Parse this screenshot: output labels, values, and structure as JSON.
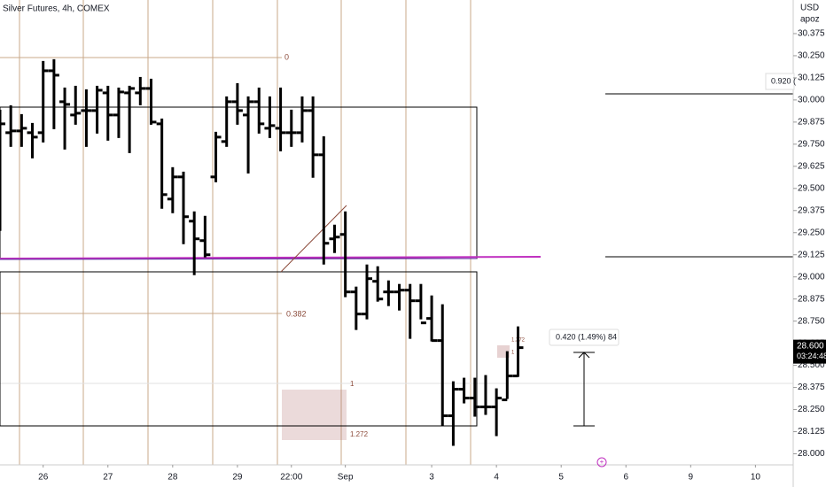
{
  "chart_data": {
    "type": "ohlc",
    "title": "Silver Futures, 4h, COMEX",
    "currency": "USD",
    "axis_note": "apoz",
    "color": "#000000",
    "open": [
      29.815,
      29.815,
      29.825,
      29.815,
      29.815,
      30.165,
      29.99,
      29.915,
      29.94,
      29.94,
      30.04,
      29.915,
      30.04,
      30.04,
      30.065,
      29.865,
      29.44,
      29.565,
      29.315,
      29.205,
      29.565,
      29.765,
      29.99,
      29.915,
      29.99,
      29.84,
      29.84,
      29.815,
      29.815,
      29.94,
      29.69,
      29.215,
      29.24,
      28.915,
      28.79,
      28.975,
      28.915,
      28.915,
      28.925,
      28.865,
      28.765,
      28.64,
      28.215,
      28.365,
      28.315,
      28.265,
      28.265,
      28.305,
      28.44
    ],
    "high": [
      29.94,
      29.965,
      29.915,
      29.865,
      30.215,
      30.225,
      30.065,
      30.075,
      30.055,
      30.075,
      30.075,
      30.065,
      30.075,
      30.125,
      30.115,
      29.89,
      29.615,
      29.59,
      29.365,
      29.34,
      29.815,
      30.015,
      30.09,
      30.015,
      30.065,
      30.015,
      30.065,
      29.94,
      30.015,
      30.015,
      29.79,
      29.29,
      29.365,
      28.94,
      29.065,
      29.055,
      28.975,
      28.955,
      28.955,
      28.955,
      28.89,
      28.84,
      28.405,
      28.425,
      28.425,
      28.44,
      28.365,
      28.575,
      28.715
    ],
    "low": [
      29.265,
      29.74,
      29.74,
      29.675,
      29.765,
      29.84,
      29.725,
      29.865,
      29.74,
      29.815,
      29.775,
      29.79,
      29.705,
      29.975,
      29.865,
      29.39,
      29.365,
      29.19,
      29.015,
      29.115,
      29.54,
      29.74,
      29.865,
      29.59,
      29.815,
      29.79,
      29.715,
      29.74,
      29.765,
      29.565,
      29.075,
      29.14,
      28.89,
      28.705,
      28.765,
      28.865,
      28.84,
      28.815,
      28.655,
      28.765,
      28.64,
      28.165,
      28.05,
      28.29,
      28.215,
      28.225,
      28.105,
      28.315,
      28.44
    ],
    "close": [
      29.865,
      29.825,
      29.84,
      29.79,
      30.165,
      30.14,
      29.975,
      29.925,
      29.94,
      30.055,
      29.915,
      30.045,
      30.065,
      30.065,
      29.875,
      29.465,
      29.565,
      29.34,
      29.215,
      29.125,
      29.79,
      29.99,
      29.94,
      29.99,
      29.865,
      29.855,
      29.815,
      29.815,
      29.94,
      29.69,
      29.19,
      29.225,
      28.915,
      28.79,
      28.99,
      28.875,
      28.915,
      28.925,
      28.865,
      28.74,
      28.64,
      28.215,
      28.365,
      28.315,
      28.265,
      28.265,
      28.315,
      28.44,
      28.6
    ],
    "xlim": [
      0,
      73.5
    ],
    "xticks": [
      {
        "value": 4,
        "label": "26"
      },
      {
        "value": 10,
        "label": "27"
      },
      {
        "value": 16,
        "label": "28"
      },
      {
        "value": 22,
        "label": "29"
      },
      {
        "value": 27,
        "label": "22:00"
      },
      {
        "value": 32,
        "label": "Sep"
      },
      {
        "value": 40,
        "label": "3"
      },
      {
        "value": 46,
        "label": "4"
      },
      {
        "value": 52,
        "label": "5"
      },
      {
        "value": 58,
        "label": "6"
      },
      {
        "value": 64,
        "label": "9"
      },
      {
        "value": 70,
        "label": "10"
      }
    ],
    "ylim": [
      27.9375,
      30.565
    ],
    "yticks": [
      {
        "value": 28,
        "label": "28.000"
      },
      {
        "value": 28.125,
        "label": "28.125"
      },
      {
        "value": 28.25,
        "label": "28.250"
      },
      {
        "value": 28.375,
        "label": "28.375"
      },
      {
        "value": 28.5,
        "label": "28.500"
      },
      {
        "value": 28.625,
        "label": "28.625"
      },
      {
        "value": 28.75,
        "label": "28.750"
      },
      {
        "value": 28.875,
        "label": "28.875"
      },
      {
        "value": 29,
        "label": "29.000"
      },
      {
        "value": 29.125,
        "label": "29.125"
      },
      {
        "value": 29.25,
        "label": "29.250"
      },
      {
        "value": 29.375,
        "label": "29.375"
      },
      {
        "value": 29.5,
        "label": "29.500"
      },
      {
        "value": 29.625,
        "label": "29.625"
      },
      {
        "value": 29.75,
        "label": "29.750"
      },
      {
        "value": 29.875,
        "label": "29.875"
      },
      {
        "value": 30,
        "label": "30.000"
      },
      {
        "value": 30.125,
        "label": "30.125"
      },
      {
        "value": 30.25,
        "label": "30.250"
      },
      {
        "value": 30.375,
        "label": "30.375"
      }
    ],
    "last_price": {
      "value": 28.6,
      "label": "28.600"
    },
    "countdown": "03:24:48",
    "annotations": {
      "fib_0": "0",
      "fib_0382": "0.382",
      "fib_1": "1",
      "fib_1272": "1.272",
      "fib2_1": "1",
      "fib2_1272": "1.272",
      "measure": "0.420 (1.49%) 84",
      "right_tag": "0.920 ("
    }
  }
}
